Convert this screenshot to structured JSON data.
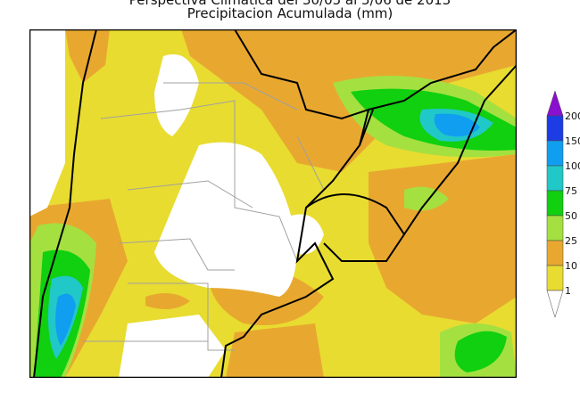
{
  "title_line1": "Perspectiva Climatica del 30/05 al 5/06 de 2013",
  "title_line2": "Precipitacion Acumulada (mm)",
  "legend": {
    "unit": "mm",
    "levels": [
      {
        "label": "200",
        "color": "#8a10d0"
      },
      {
        "label": "150",
        "color": "#1e3ce6"
      },
      {
        "label": "100",
        "color": "#109ef0"
      },
      {
        "label": "75",
        "color": "#20c8c8"
      },
      {
        "label": "50",
        "color": "#10d010"
      },
      {
        "label": "25",
        "color": "#a4e040"
      },
      {
        "label": "10",
        "color": "#e8a830"
      },
      {
        "label": "1",
        "color": "#e8dc30"
      }
    ]
  },
  "colors": {
    "no_rain": "#ffffff",
    "border": "#000000",
    "province_lines": "#a0a0a0"
  }
}
